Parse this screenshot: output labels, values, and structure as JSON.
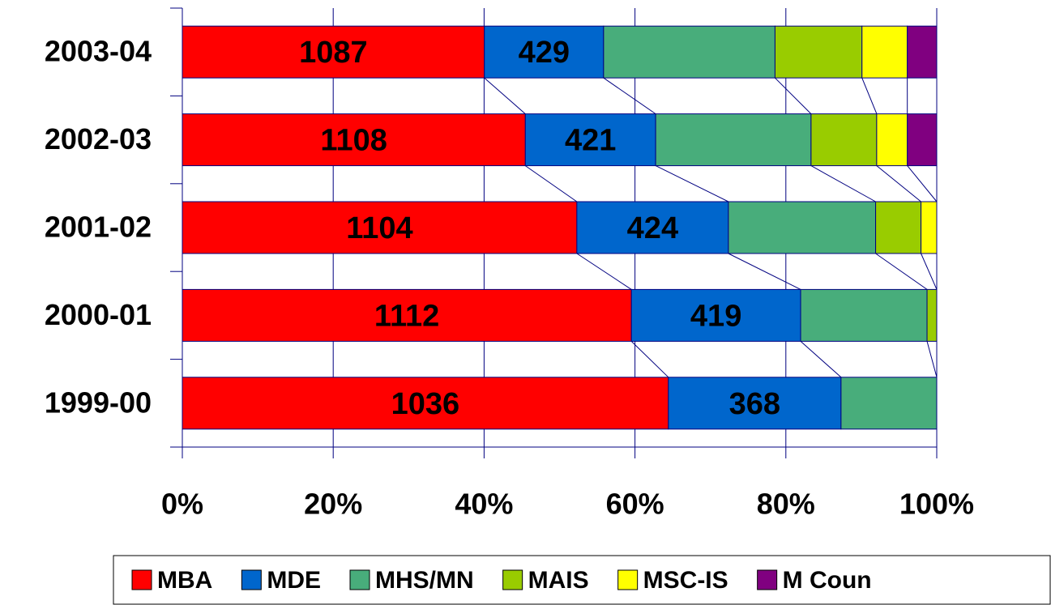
{
  "chart_data": {
    "type": "stacked100_barh",
    "categories": [
      "2003-04",
      "2002-03",
      "2001-02",
      "2000-01",
      "1999-00"
    ],
    "series": [
      {
        "name": "MBA",
        "color": "#ff0000",
        "values": [
          1087,
          1108,
          1104,
          1112,
          1036
        ],
        "data_labels": true
      },
      {
        "name": "MDE",
        "color": "#0066cc",
        "values": [
          429,
          421,
          424,
          419,
          368
        ],
        "data_labels": true
      },
      {
        "name": "MHS/MN",
        "color": "#48ad7b",
        "values": [
          617,
          502,
          412,
          313,
          204
        ]
      },
      {
        "name": "MAIS",
        "color": "#99cc00",
        "values": [
          313,
          212,
          127,
          24,
          0
        ]
      },
      {
        "name": "MSC-IS",
        "color": "#ffff00",
        "values": [
          163,
          99,
          44,
          0,
          0
        ]
      },
      {
        "name": "M Coun",
        "color": "#800080",
        "values": [
          106,
          95,
          0,
          0,
          0
        ]
      }
    ],
    "xlim": [
      0,
      100
    ],
    "xticks": [
      {
        "value": 0,
        "label": "0%"
      },
      {
        "value": 20,
        "label": "20%"
      },
      {
        "value": 40,
        "label": "40%"
      },
      {
        "value": 60,
        "label": "60%"
      },
      {
        "value": 80,
        "label": "80%"
      },
      {
        "value": 100,
        "label": "100%"
      }
    ],
    "grid": true,
    "series_lines": true,
    "legend": "bottom"
  }
}
